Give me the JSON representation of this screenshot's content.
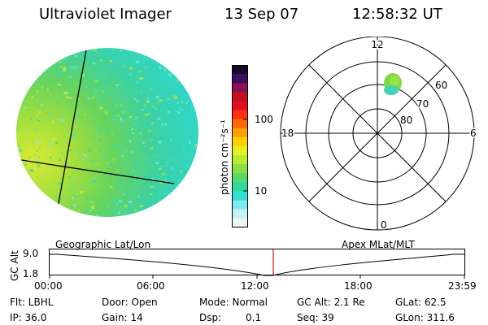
{
  "header": {
    "instrument": "Ultraviolet Imager",
    "date": "13 Sep 07",
    "time": "12:58:32 UT"
  },
  "colorbar": {
    "unit_label": "photon cm⁻²s⁻¹",
    "ticks": [
      "100",
      "10"
    ],
    "colors": [
      "#1a0a2a",
      "#3a1060",
      "#8a1050",
      "#c01020",
      "#e01020",
      "#ff3010",
      "#ff6a00",
      "#ffa000",
      "#ffd000",
      "#e8f020",
      "#b8ea30",
      "#88e040",
      "#58d868",
      "#30d8a0",
      "#30e0d0",
      "#80eaea",
      "#c8f2f2",
      "#eaf6f6"
    ],
    "scale": "log"
  },
  "polar_plot": {
    "mlt_labels": [
      "12",
      "18",
      "6",
      "0"
    ],
    "mlat_labels": [
      "60",
      "70",
      "80"
    ]
  },
  "timeline": {
    "left_title": "Geographic Lat/Lon",
    "right_title": "Apex MLat/MLT",
    "y_axis_label": "GC Alt",
    "y_ticks": [
      "9.0",
      "1.8"
    ],
    "x_ticks": [
      "00:00",
      "06:00",
      "12:00",
      "18:00",
      "23:59"
    ],
    "current_time_color": "#e02020"
  },
  "info": {
    "filter": "Flt: LBHL",
    "door": "Door: Open",
    "mode": "Mode: Normal",
    "gc_alt": "GC Alt: 2.1 Re",
    "glat": "GLat: 62.5",
    "ip": "IP: 36.0",
    "gain": "Gain: 14",
    "dsp_label": "Dsp:",
    "dsp_value": "0.1",
    "seq": "Seq: 39",
    "glon": "GLon: 311.6"
  }
}
